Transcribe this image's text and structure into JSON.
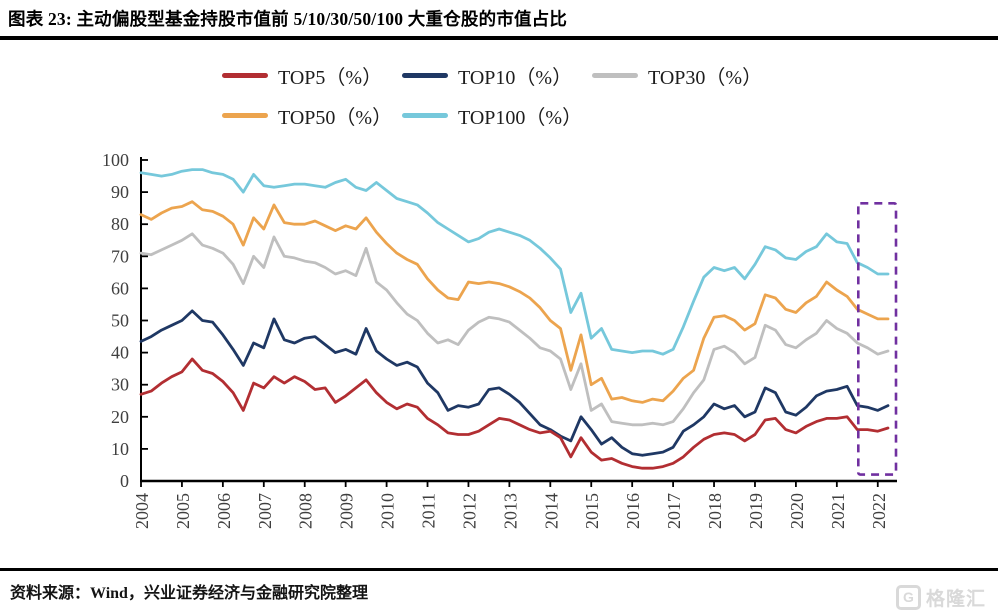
{
  "page": {
    "title": "图表 23:  主动偏股型基金持股市值前 5/10/30/50/100 大重仓股的市值占比",
    "source": "资料来源：Wind，兴业证券经济与金融研究院整理",
    "logo_icon": "G",
    "logo_text": "格隆汇"
  },
  "chart_data": {
    "type": "line",
    "title": "",
    "xlabel": "",
    "ylabel": "",
    "ylim": [
      0,
      100
    ],
    "grid": false,
    "legend_position": "top",
    "y_axis": {
      "min": 0,
      "max": 100,
      "tick_step": 10,
      "tick_labels": [
        "0",
        "10",
        "20",
        "30",
        "40",
        "50",
        "60",
        "70",
        "80",
        "90",
        "100"
      ]
    },
    "x_axis": {
      "frequency": "quarterly",
      "start": "2004Q1",
      "end": "2022Q2",
      "tick_labels": [
        "2004",
        "2005",
        "2006",
        "2007",
        "2008",
        "2009",
        "2010",
        "2011",
        "2012",
        "2013",
        "2014",
        "2015",
        "2016",
        "2017",
        "2018",
        "2019",
        "2020",
        "2021",
        "2022"
      ]
    },
    "x_quarters": [
      "2004Q1",
      "2004Q2",
      "2004Q3",
      "2004Q4",
      "2005Q1",
      "2005Q2",
      "2005Q3",
      "2005Q4",
      "2006Q1",
      "2006Q2",
      "2006Q3",
      "2006Q4",
      "2007Q1",
      "2007Q2",
      "2007Q3",
      "2007Q4",
      "2008Q1",
      "2008Q2",
      "2008Q3",
      "2008Q4",
      "2009Q1",
      "2009Q2",
      "2009Q3",
      "2009Q4",
      "2010Q1",
      "2010Q2",
      "2010Q3",
      "2010Q4",
      "2011Q1",
      "2011Q2",
      "2011Q3",
      "2011Q4",
      "2012Q1",
      "2012Q2",
      "2012Q3",
      "2012Q4",
      "2013Q1",
      "2013Q2",
      "2013Q3",
      "2013Q4",
      "2014Q1",
      "2014Q2",
      "2014Q3",
      "2014Q4",
      "2015Q1",
      "2015Q2",
      "2015Q3",
      "2015Q4",
      "2016Q1",
      "2016Q2",
      "2016Q3",
      "2016Q4",
      "2017Q1",
      "2017Q2",
      "2017Q3",
      "2017Q4",
      "2018Q1",
      "2018Q2",
      "2018Q3",
      "2018Q4",
      "2019Q1",
      "2019Q2",
      "2019Q3",
      "2019Q4",
      "2020Q1",
      "2020Q2",
      "2020Q3",
      "2020Q4",
      "2021Q1",
      "2021Q2",
      "2021Q3",
      "2021Q4",
      "2022Q1",
      "2022Q2"
    ],
    "series": [
      {
        "name": "TOP5（%）",
        "color": "#B22E32",
        "values": [
          27,
          28,
          30.5,
          32.5,
          34,
          38,
          34.5,
          33.5,
          31,
          27.5,
          22,
          30.5,
          29,
          32.5,
          30.5,
          32.5,
          31,
          28.5,
          29,
          24.5,
          26.5,
          29,
          31.5,
          27.5,
          24.5,
          22.5,
          24,
          23,
          19.5,
          17.5,
          15,
          14.5,
          14.5,
          15.5,
          17.5,
          19.5,
          19,
          17.5,
          16,
          15,
          15.5,
          13.5,
          7.5,
          13.5,
          9,
          6.5,
          7,
          5.5,
          4.5,
          4,
          4,
          4.5,
          5.5,
          7.5,
          10.5,
          13,
          14.5,
          15,
          14.5,
          12.5,
          14.5,
          19,
          19.5,
          16,
          15,
          17,
          18.5,
          19.5,
          19.5,
          20,
          16,
          16,
          15.5,
          16.5
        ]
      },
      {
        "name": "TOP10（%）",
        "color": "#1F3864",
        "values": [
          43.5,
          45,
          47,
          48.5,
          50,
          53,
          50,
          49.5,
          45.5,
          41,
          36,
          43,
          41.5,
          50.5,
          44,
          43,
          44.5,
          45,
          42.5,
          40,
          41,
          39.5,
          47.5,
          40.5,
          38,
          36,
          37,
          35.5,
          30.5,
          27.5,
          22,
          23.5,
          23,
          24,
          28.5,
          29,
          27,
          24.5,
          21,
          17.5,
          16,
          14,
          12.5,
          20,
          16,
          11.5,
          13.5,
          10.5,
          8.5,
          8,
          8.5,
          9,
          10.5,
          15.5,
          17.5,
          20,
          24,
          22.5,
          23.5,
          20,
          21.5,
          29,
          27.5,
          21.5,
          20.5,
          23,
          26.5,
          28,
          28.5,
          29.5,
          23.5,
          23,
          22,
          23.5
        ]
      },
      {
        "name": "TOP30（%）",
        "color": "#BFBFBF",
        "values": [
          71,
          70.5,
          72,
          73.5,
          75,
          77,
          73.5,
          72.5,
          71,
          67.5,
          61.5,
          70,
          66.5,
          76,
          70,
          69.5,
          68.5,
          68,
          66.5,
          64.5,
          65.5,
          64,
          72.5,
          62,
          59.5,
          55.5,
          52,
          50,
          46,
          43,
          44,
          42.5,
          47,
          49.5,
          51,
          50.5,
          49.5,
          47,
          44.5,
          41.5,
          40.5,
          38,
          28.5,
          36.5,
          22,
          24,
          18.5,
          18,
          17.5,
          17.5,
          18,
          17.5,
          18.5,
          22.5,
          27.5,
          31.5,
          41,
          42,
          40,
          36.5,
          38.5,
          48.5,
          47,
          42.5,
          41.5,
          44,
          46,
          50,
          47.5,
          46,
          43,
          41.5,
          39.5,
          40.5
        ]
      },
      {
        "name": "TOP50（%）",
        "color": "#ECA44E",
        "values": [
          83,
          81.5,
          83.5,
          85,
          85.5,
          87,
          84.5,
          84,
          82.5,
          80,
          73.5,
          82,
          78.5,
          86,
          80.5,
          80,
          80,
          81,
          79.5,
          78,
          79.5,
          78.5,
          82,
          77.5,
          74,
          71,
          69,
          67.5,
          63,
          59.5,
          57,
          56.5,
          62,
          61.5,
          62,
          61.5,
          60.5,
          59,
          57,
          54,
          50,
          47.5,
          34.5,
          45.5,
          30,
          32,
          25.5,
          26,
          25,
          24.5,
          25.5,
          25,
          28,
          32,
          34.5,
          44.5,
          51,
          51.5,
          50,
          47,
          49,
          58,
          57,
          53.5,
          52.5,
          55.5,
          57.5,
          62,
          59.5,
          57.5,
          53.5,
          52,
          50.5,
          50.5
        ]
      },
      {
        "name": "TOP100（%）",
        "color": "#76C8DB",
        "values": [
          96,
          95.5,
          95,
          95.5,
          96.5,
          97,
          97,
          96,
          95.5,
          94,
          90,
          95.5,
          92,
          91.5,
          92,
          92.5,
          92.5,
          92,
          91.5,
          93,
          94,
          91.5,
          90.5,
          93,
          90.5,
          88,
          87,
          86,
          83.5,
          80.5,
          78.5,
          76.5,
          74.5,
          75.5,
          77.5,
          78.5,
          77.5,
          76.5,
          75,
          72.5,
          69.5,
          66,
          52.5,
          58.5,
          44.5,
          47.5,
          41,
          40.5,
          40,
          40.5,
          40.5,
          39.5,
          41,
          48,
          56,
          63.5,
          66.5,
          65.5,
          66.5,
          63,
          67.5,
          73,
          72,
          69.5,
          69,
          71.5,
          73,
          77,
          74.5,
          74,
          68,
          66.5,
          64.5,
          64.5
        ]
      }
    ],
    "annotation_box": {
      "label": "highlight-2022",
      "x_from": "2021Q3",
      "x_to": "2022Q2",
      "y_from": 2,
      "y_to": 86.5,
      "color": "#7030A0",
      "style": "dashed"
    }
  }
}
